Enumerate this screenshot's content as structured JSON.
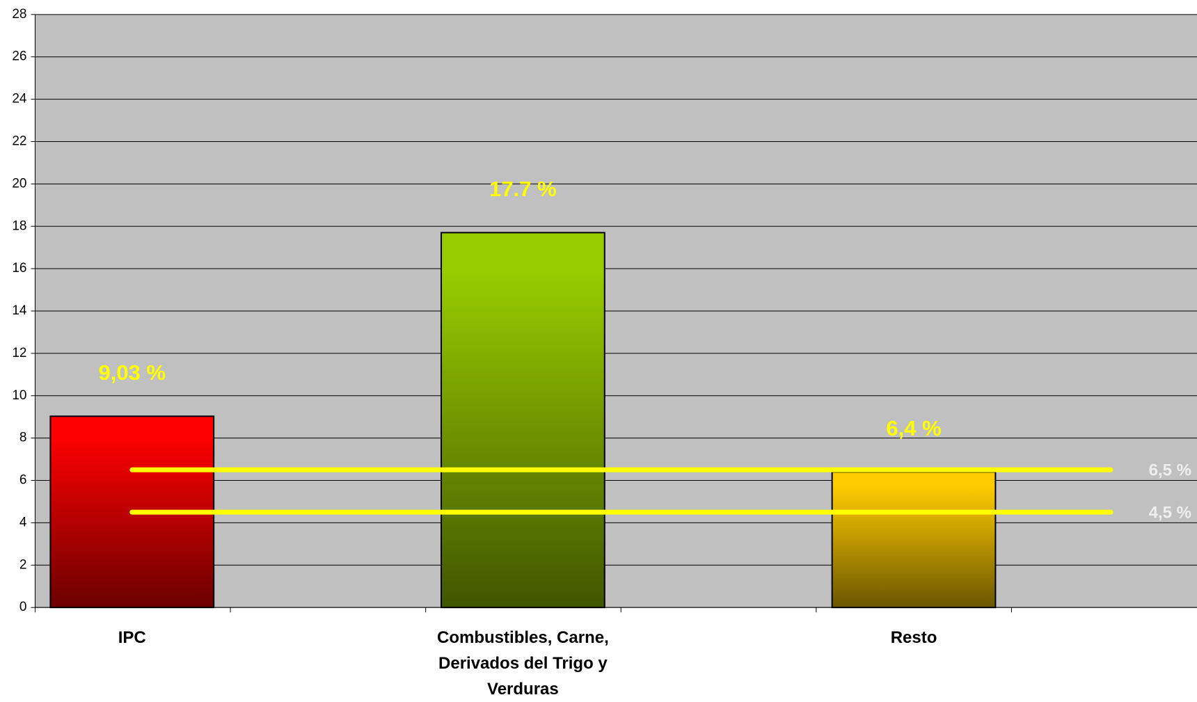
{
  "chart_data": {
    "type": "bar",
    "categories": [
      "IPC",
      "Combustibles, Carne, Derivados del Trigo y Verduras",
      "Resto"
    ],
    "values": [
      9.03,
      17.7,
      6.4
    ],
    "value_labels": [
      "9,03 %",
      "17.7 %",
      "6,4 %"
    ],
    "colors": [
      "#ff0000",
      "#99cc00",
      "#ffcc00"
    ],
    "ylim": [
      0,
      28
    ],
    "yticks": [
      0,
      2,
      4,
      6,
      8,
      10,
      12,
      14,
      16,
      18,
      20,
      22,
      24,
      26,
      28
    ],
    "grid": true,
    "reference_lines": [
      {
        "value": 6.5,
        "label": "6,5 %"
      },
      {
        "value": 4.5,
        "label": "4,5 %"
      }
    ]
  }
}
